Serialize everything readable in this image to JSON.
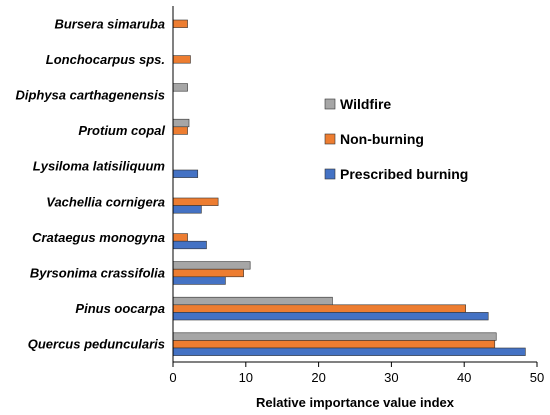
{
  "chart_data": {
    "type": "bar",
    "orientation": "horizontal",
    "title": "",
    "xlabel": "Relative importance value index",
    "ylabel": "",
    "xlim": [
      0,
      50
    ],
    "xticks": [
      0,
      10,
      20,
      30,
      40,
      50
    ],
    "grid": false,
    "legend_position": "right",
    "categories": [
      "Bursera simaruba",
      "Lonchocarpus sps.",
      "Diphysa carthagenensis",
      "Protium copal",
      "Lysiloma latisiliquum",
      "Vachellia cornigera",
      "Crataegus monogyna",
      "Byrsonima crassifolia",
      "Pinus oocarpa",
      "Quercus peduncularis"
    ],
    "series": [
      {
        "name": "Wildfire",
        "color": "#a6a6a6",
        "values": [
          0,
          0,
          2.0,
          2.2,
          0,
          0,
          0,
          10.6,
          21.9,
          44.4
        ]
      },
      {
        "name": "Non-burning",
        "color": "#ed7d31",
        "values": [
          2.0,
          2.4,
          0,
          2.0,
          0,
          6.2,
          2.0,
          9.7,
          40.2,
          44.2
        ]
      },
      {
        "name": "Prescribed burning",
        "color": "#4472c4",
        "values": [
          0,
          0,
          0,
          0,
          3.4,
          3.9,
          4.6,
          7.2,
          43.3,
          48.4
        ]
      }
    ]
  }
}
